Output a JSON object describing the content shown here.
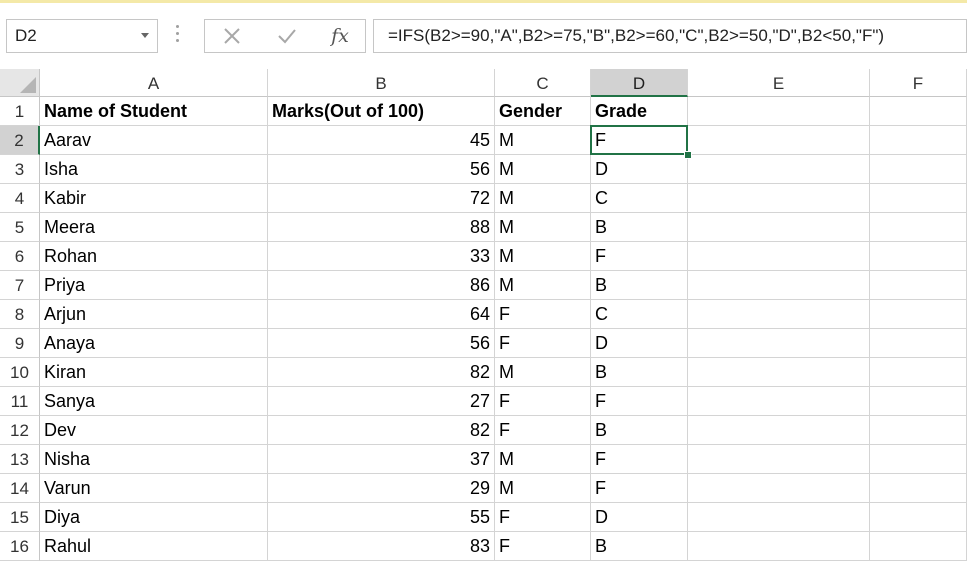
{
  "name_box": {
    "value": "D2"
  },
  "toolbar": {
    "cancel_icon": "✕",
    "enter_icon": "✓",
    "fx_label": "fx"
  },
  "formula_bar": {
    "value": "=IFS(B2>=90,\"A\",B2>=75,\"B\",B2>=60,\"C\",B2>=50,\"D\",B2<50,\"F\")"
  },
  "columns": [
    "A",
    "B",
    "C",
    "D",
    "E",
    "F"
  ],
  "selected_column": "D",
  "selected_row": 2,
  "row_numbers": [
    "1",
    "2",
    "3",
    "4",
    "5",
    "6",
    "7",
    "8",
    "9",
    "10",
    "11",
    "12",
    "13",
    "14",
    "15",
    "16"
  ],
  "header_row": {
    "A": "Name of Student",
    "B": "Marks(Out of 100)",
    "C": "Gender",
    "D": "Grade"
  },
  "rows": [
    {
      "A": "Aarav",
      "B": "45",
      "C": "M",
      "D": "F"
    },
    {
      "A": "Isha",
      "B": "56",
      "C": "M",
      "D": "D"
    },
    {
      "A": "Kabir",
      "B": "72",
      "C": "M",
      "D": "C"
    },
    {
      "A": "Meera",
      "B": "88",
      "C": "M",
      "D": "B"
    },
    {
      "A": "Rohan",
      "B": "33",
      "C": "M",
      "D": "F"
    },
    {
      "A": "Priya",
      "B": "86",
      "C": "M",
      "D": "B"
    },
    {
      "A": "Arjun",
      "B": "64",
      "C": "F",
      "D": "C"
    },
    {
      "A": "Anaya",
      "B": "56",
      "C": "F",
      "D": "D"
    },
    {
      "A": "Kiran",
      "B": "82",
      "C": "M",
      "D": "B"
    },
    {
      "A": "Sanya",
      "B": "27",
      "C": "F",
      "D": "F"
    },
    {
      "A": "Dev",
      "B": "82",
      "C": "F",
      "D": "B"
    },
    {
      "A": "Nisha",
      "B": "37",
      "C": "M",
      "D": "F"
    },
    {
      "A": "Varun",
      "B": "29",
      "C": "M",
      "D": "F"
    },
    {
      "A": "Diya",
      "B": "55",
      "C": "F",
      "D": "D"
    },
    {
      "A": "Rahul",
      "B": "83",
      "C": "F",
      "D": "B"
    }
  ],
  "colors": {
    "accent": "#217346",
    "header_selected": "#d2d2d2",
    "gridline": "#d4d4d4"
  }
}
